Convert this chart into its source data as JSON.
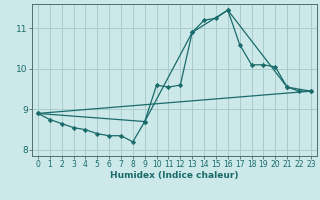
{
  "xlabel": "Humidex (Indice chaleur)",
  "ylabel": "",
  "background_color": "#cce8e8",
  "grid_color": "#aacccc",
  "line_color": "#1a6b6b",
  "xlim": [
    -0.5,
    23.5
  ],
  "ylim": [
    7.85,
    11.6
  ],
  "yticks": [
    8,
    9,
    10,
    11
  ],
  "xticks": [
    0,
    1,
    2,
    3,
    4,
    5,
    6,
    7,
    8,
    9,
    10,
    11,
    12,
    13,
    14,
    15,
    16,
    17,
    18,
    19,
    20,
    21,
    22,
    23
  ],
  "series1": {
    "x": [
      0,
      1,
      2,
      3,
      4,
      5,
      6,
      7,
      8,
      9,
      10,
      11,
      12,
      13,
      14,
      15,
      16,
      17,
      18,
      19,
      20,
      21,
      22,
      23
    ],
    "y": [
      8.9,
      8.75,
      8.65,
      8.55,
      8.5,
      8.4,
      8.35,
      8.35,
      8.2,
      8.7,
      9.6,
      9.55,
      9.6,
      10.9,
      11.2,
      11.25,
      11.45,
      10.6,
      10.1,
      10.1,
      10.05,
      9.55,
      9.45,
      9.45
    ]
  },
  "series2": {
    "x": [
      0,
      9,
      13,
      16,
      21,
      23
    ],
    "y": [
      8.9,
      8.7,
      10.9,
      11.45,
      9.55,
      9.45
    ]
  },
  "series3": {
    "x": [
      0,
      23
    ],
    "y": [
      8.9,
      9.45
    ]
  }
}
